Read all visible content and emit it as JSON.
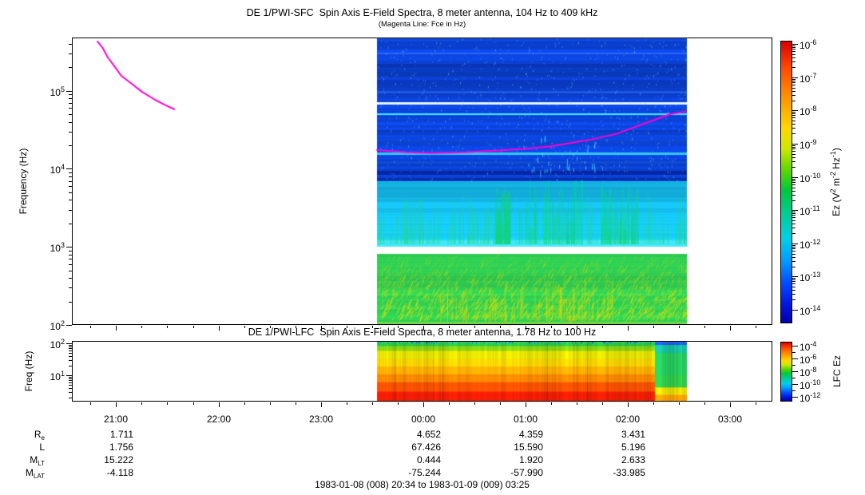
{
  "footer": "1983-01-08 (008) 20:34 to 1983-01-09 (009) 03:25",
  "time_axis": {
    "start": "20:34",
    "end": "03:25",
    "hour_ticks": [
      "21:00",
      "22:00",
      "23:00",
      "00:00",
      "01:00",
      "02:00",
      "03:00"
    ],
    "minor_interval_min": 15
  },
  "chart_data": [
    {
      "type": "heatmap",
      "panel": "SFC",
      "title": "DE 1/PWI-SFC  Spin Axis E-Field Spectra, 8 meter antenna, 104 Hz to 409 kHz",
      "subtitle": "(Magenta Line: Fce in Hz)",
      "ylabel": "Frequency (Hz)",
      "ytick_exponents": [
        5,
        4,
        3,
        2
      ],
      "freq_range_hz": [
        100,
        480000
      ],
      "data_time": [
        "23:33",
        "02:35"
      ],
      "colorbar": {
        "label": "Ez (V^2^ m^-2^ Hz^-1^)",
        "tick_exponents": [
          -6,
          -7,
          -8,
          -9,
          -10,
          -11,
          -12,
          -13,
          -14
        ]
      },
      "bands": [
        {
          "name": "upper-blue",
          "f_hz": [
            7000,
            480000
          ],
          "base": "#0b43d8"
        },
        {
          "name": "mid-cyan",
          "f_hz": [
            1000,
            7000
          ],
          "base": "#14b6e6"
        },
        {
          "name": "lower-green",
          "f_hz": [
            100,
            820
          ],
          "base": "#2fd054"
        }
      ],
      "stripes": [
        {
          "f_hz": 300000,
          "h": 2,
          "color": "#2a63ea"
        },
        {
          "f_hz": 210000,
          "h": 4,
          "color": "#0a33b5"
        },
        {
          "f_hz": 130000,
          "h": 5,
          "color": "#0a36c0"
        },
        {
          "f_hz": 95000,
          "h": 3,
          "color": "#1e56e6"
        },
        {
          "f_hz": 68000,
          "h": 3,
          "color": "#e8f5ff"
        },
        {
          "f_hz": 50000,
          "h": 2,
          "color": "#49e9ff"
        },
        {
          "f_hz": 30000,
          "h": 3,
          "color": "#0a38c0"
        },
        {
          "f_hz": 22000,
          "h": 3,
          "color": "#0d44cc"
        },
        {
          "f_hz": 15500,
          "h": 3,
          "color": "#38c8f0"
        },
        {
          "f_hz": 12000,
          "h": 3,
          "color": "#0e4cd8"
        },
        {
          "f_hz": 8800,
          "h": 5,
          "color": "#0627a5"
        },
        {
          "f_hz": 7400,
          "h": 3,
          "color": "#062ba8"
        }
      ],
      "fce_line": {
        "color": "#ff00d2",
        "segments": [
          [
            [
              "20:49",
              427000
            ],
            [
              "20:52",
              355000
            ],
            [
              "20:55",
              268000
            ],
            [
              "20:59",
              205000
            ],
            [
              "21:03",
              155000
            ],
            [
              "21:09",
              123000
            ],
            [
              "21:15",
              97000
            ],
            [
              "21:23",
              76000
            ],
            [
              "21:29",
              65000
            ],
            [
              "21:34",
              58000
            ]
          ],
          [
            [
              "23:33",
              17400
            ],
            [
              "23:50",
              16300
            ],
            [
              "00:05",
              15900
            ],
            [
              "00:25",
              16300
            ],
            [
              "00:42",
              17000
            ],
            [
              "01:00",
              18000
            ],
            [
              "01:16",
              19500
            ],
            [
              "01:38",
              23500
            ],
            [
              "01:54",
              28200
            ],
            [
              "02:10",
              38000
            ],
            [
              "02:25",
              50000
            ],
            [
              "02:34",
              54000
            ]
          ]
        ]
      }
    },
    {
      "type": "heatmap",
      "panel": "LFC",
      "title": "DE 1/PWI-LFC  Spin Axis E-Field Spectra, 8 meter antenna, 1.78 Hz to 100 Hz",
      "ylabel": "Freq (Hz)",
      "ytick_exponents": [
        2,
        1
      ],
      "freq_range_hz": [
        1.78,
        100
      ],
      "data_time": [
        "23:33",
        "02:35"
      ],
      "transition_time": "02:16",
      "colorbar": {
        "label": "LFC Ez",
        "tick_exponents": [
          -4,
          -6,
          -8,
          -10,
          -12
        ]
      },
      "bands_main": [
        {
          "frac": [
            0,
            0.075
          ],
          "color": "#2cc94a"
        },
        {
          "frac": [
            0.075,
            0.155
          ],
          "color": "#8ad412"
        },
        {
          "frac": [
            0.155,
            0.295
          ],
          "color": "#e6e200"
        },
        {
          "frac": [
            0.295,
            0.42
          ],
          "color": "#f6d400"
        },
        {
          "frac": [
            0.42,
            0.55
          ],
          "color": "#fcb000"
        },
        {
          "frac": [
            0.55,
            0.685
          ],
          "color": "#fa8800"
        },
        {
          "frac": [
            0.685,
            0.845
          ],
          "color": "#f85200"
        },
        {
          "frac": [
            0.845,
            1
          ],
          "color": "#f21e06"
        }
      ],
      "bands_tail": [
        {
          "frac": [
            0,
            0.055
          ],
          "color": "#1e5ce8"
        },
        {
          "frac": [
            0.055,
            0.19
          ],
          "color": "#16bfa2"
        },
        {
          "frac": [
            0.19,
            0.57
          ],
          "color": "#26c85c"
        },
        {
          "frac": [
            0.57,
            0.775
          ],
          "color": "#31c94a"
        },
        {
          "frac": [
            0.775,
            0.9
          ],
          "color": "#e6dc00"
        },
        {
          "frac": [
            0.9,
            1
          ],
          "color": "#faa000"
        }
      ]
    }
  ],
  "colors": {
    "magenta_line": "#ff00d2",
    "colormap_top_to_bottom": [
      [
        "0%",
        "#d80000"
      ],
      [
        "9%",
        "#ff4600"
      ],
      [
        "20%",
        "#ff9400"
      ],
      [
        "31%",
        "#ffd800"
      ],
      [
        "38%",
        "#cfe800"
      ],
      [
        "46%",
        "#5ad600"
      ],
      [
        "53%",
        "#00c83c"
      ],
      [
        "62%",
        "#00cd9c"
      ],
      [
        "70%",
        "#00d0e6"
      ],
      [
        "78%",
        "#009cff"
      ],
      [
        "86%",
        "#004cff"
      ],
      [
        "94%",
        "#0014d8"
      ],
      [
        "100%",
        "#0000ae"
      ]
    ]
  },
  "ephemeris": {
    "rows": [
      {
        "label": "R",
        "sub": "e",
        "values": {
          "21:00": "1.711",
          "00:00": "4.652",
          "01:00": "4.359",
          "02:00": "3.431"
        }
      },
      {
        "label": "L",
        "sub": "",
        "values": {
          "21:00": "1.756",
          "00:00": "67.426",
          "01:00": "15.590",
          "02:00": "5.196"
        }
      },
      {
        "label": "M",
        "sub": "LT",
        "values": {
          "21:00": "15.222",
          "00:00": "0.444",
          "01:00": "1.920",
          "02:00": "2.633"
        }
      },
      {
        "label": "M",
        "sub": "LAT",
        "values": {
          "21:00": "-4.118",
          "00:00": "-75.244",
          "01:00": "-57.990",
          "02:00": "-33.985"
        }
      }
    ]
  }
}
